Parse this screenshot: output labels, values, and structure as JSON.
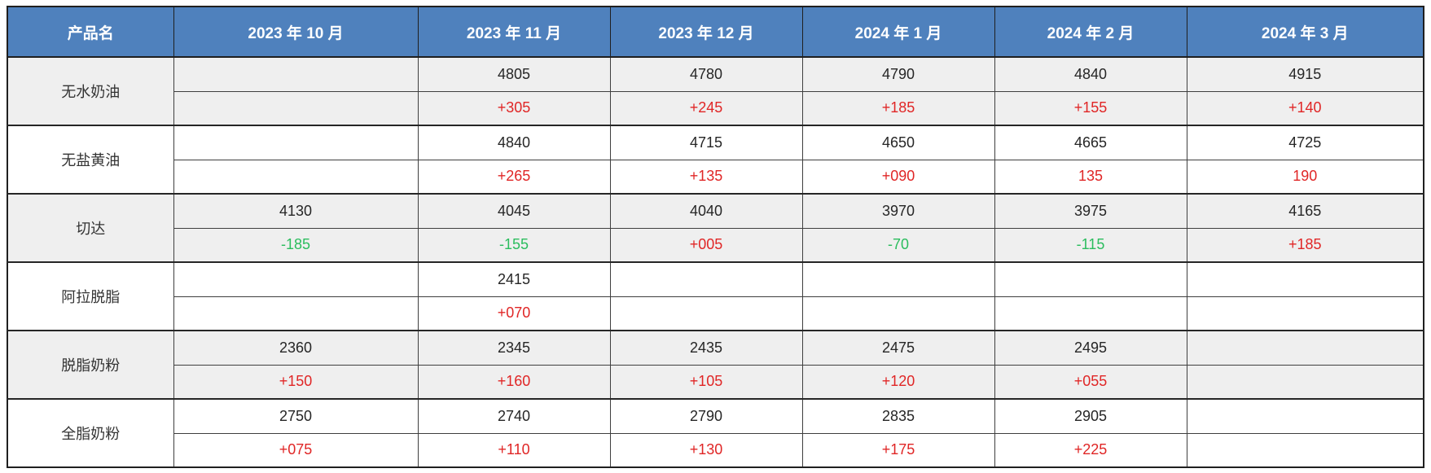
{
  "colors": {
    "header_bg": "#4F81BD",
    "header_text": "#FFFFFF",
    "shaded_row_bg": "#EFEFEF",
    "positive_change": "#E02626",
    "negative_change": "#2BBD5E",
    "price_text": "#262626",
    "border": "#3F3F3F"
  },
  "table": {
    "header": [
      "产品名",
      "2023 年 10 月",
      "2023 年 11 月",
      "2023 年 12 月",
      "2024 年 1 月",
      "2024 年 2 月",
      "2024 年 3 月"
    ],
    "products": [
      {
        "name": "无水奶油",
        "shaded": true,
        "prices": [
          "",
          "4805",
          "4780",
          "4790",
          "4840",
          "4915"
        ],
        "changes": [
          "",
          "+305",
          "+245",
          "+185",
          "+155",
          "+140"
        ]
      },
      {
        "name": "无盐黄油",
        "shaded": false,
        "prices": [
          "",
          "4840",
          "4715",
          "4650",
          "4665",
          "4725"
        ],
        "changes": [
          "",
          "+265",
          "+135",
          "+090",
          "135",
          "190"
        ]
      },
      {
        "name": "切达",
        "shaded": true,
        "prices": [
          "4130",
          "4045",
          "4040",
          "3970",
          "3975",
          "4165"
        ],
        "changes": [
          "-185",
          "-155",
          "+005",
          "-70",
          "-115",
          "+185"
        ]
      },
      {
        "name": "阿拉脱脂",
        "shaded": false,
        "prices": [
          "",
          "2415",
          "",
          "",
          "",
          ""
        ],
        "changes": [
          "",
          "+070",
          "",
          "",
          "",
          ""
        ]
      },
      {
        "name": "脱脂奶粉",
        "shaded": true,
        "prices": [
          "2360",
          "2345",
          "2435",
          "2475",
          "2495",
          ""
        ],
        "changes": [
          "+150",
          "+160",
          "+105",
          "+120",
          "+055",
          ""
        ]
      },
      {
        "name": "全脂奶粉",
        "shaded": false,
        "prices": [
          "2750",
          "2740",
          "2790",
          "2835",
          "2905",
          ""
        ],
        "changes": [
          "+075",
          "+110",
          "+130",
          "+175",
          "+225",
          ""
        ]
      }
    ]
  },
  "chart_data": {
    "type": "table",
    "columns": [
      "产品名",
      "2023年10月",
      "2023年11月",
      "2023年12月",
      "2024年1月",
      "2024年2月",
      "2024年3月"
    ],
    "row_structure": [
      "price",
      "month_over_month_change"
    ],
    "products": [
      {
        "name": "无水奶油",
        "prices": [
          null,
          4805,
          4780,
          4790,
          4840,
          4915
        ],
        "changes": [
          null,
          305,
          245,
          185,
          155,
          140
        ]
      },
      {
        "name": "无盐黄油",
        "prices": [
          null,
          4840,
          4715,
          4650,
          4665,
          4725
        ],
        "changes": [
          null,
          265,
          135,
          90,
          135,
          190
        ]
      },
      {
        "name": "切达",
        "prices": [
          4130,
          4045,
          4040,
          3970,
          3975,
          4165
        ],
        "changes": [
          -185,
          -155,
          5,
          -70,
          -115,
          185
        ]
      },
      {
        "name": "阿拉脱脂",
        "prices": [
          null,
          2415,
          null,
          null,
          null,
          null
        ],
        "changes": [
          null,
          70,
          null,
          null,
          null,
          null
        ]
      },
      {
        "name": "脱脂奶粉",
        "prices": [
          2360,
          2345,
          2435,
          2475,
          2495,
          null
        ],
        "changes": [
          150,
          160,
          105,
          120,
          55,
          null
        ]
      },
      {
        "name": "全脂奶粉",
        "prices": [
          2750,
          2740,
          2790,
          2835,
          2905,
          null
        ],
        "changes": [
          75,
          110,
          130,
          175,
          225,
          null
        ]
      }
    ]
  }
}
